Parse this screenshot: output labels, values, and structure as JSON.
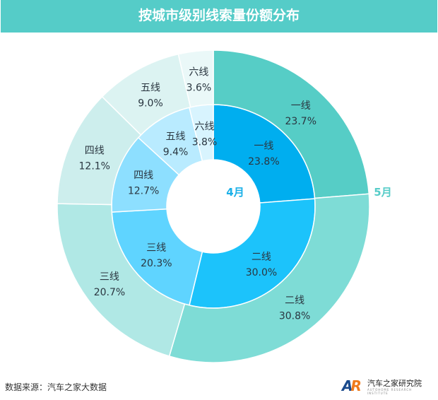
{
  "title": "按城市级别线索量份额分布",
  "source": "数据来源：汽车之家大数据",
  "logo": {
    "mark": "AR",
    "name": "汽车之家研究院",
    "sub": "AUTOHOME RESEARCH INSTITUTE"
  },
  "chart_data": {
    "type": "pie",
    "title": "按城市级别线索量份额分布",
    "categories": [
      "一线",
      "二线",
      "三线",
      "四线",
      "五线",
      "六线"
    ],
    "series": [
      {
        "name": "4月",
        "ring": "inner",
        "values": [
          23.8,
          30.0,
          20.3,
          12.7,
          9.4,
          3.8
        ],
        "labels": [
          "23.8%",
          "30.0%",
          "20.3%",
          "12.7%",
          "9.4%",
          "3.8%"
        ],
        "colors": [
          "#00aeef",
          "#1cc3fb",
          "#5fd4ff",
          "#8ddfff",
          "#b9ebff",
          "#d8f4fe"
        ],
        "label_color": "#1ab0e8"
      },
      {
        "name": "5月",
        "ring": "outer",
        "values": [
          23.7,
          30.8,
          20.7,
          12.1,
          9.0,
          3.6
        ],
        "labels": [
          "23.7%",
          "30.8%",
          "20.7%",
          "12.1%",
          "9.0%",
          "3.6%"
        ],
        "colors": [
          "#56cdc6",
          "#7edcd6",
          "#b0e8e5",
          "#cdeeed",
          "#dcf3f2",
          "#eaf8f8"
        ],
        "label_color": "#56ccc8"
      }
    ]
  }
}
